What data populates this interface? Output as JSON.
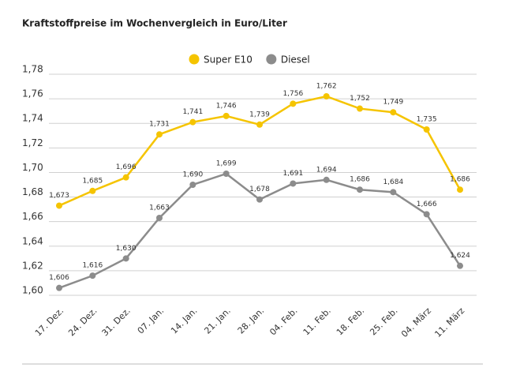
{
  "chart_data": {
    "type": "line",
    "title": "Kraftstoffpreise im Wochenvergleich in Euro/Liter",
    "categories": [
      "17. Dez.",
      "24. Dez.",
      "31. Dez.",
      "07. Jan.",
      "14. Jan.",
      "21. Jan.",
      "28. Jan.",
      "04. Feb.",
      "11. Feb.",
      "18. Feb.",
      "25. Feb.",
      "04. März",
      "11. März"
    ],
    "series": [
      {
        "name": "Super E10",
        "color": "#f5c400",
        "values": [
          1.673,
          1.685,
          1.696,
          1.731,
          1.741,
          1.746,
          1.739,
          1.756,
          1.762,
          1.752,
          1.749,
          1.735,
          1.686
        ],
        "value_labels": [
          "1,673",
          "1,685",
          "1,696",
          "1,731",
          "1,741",
          "1,746",
          "1,739",
          "1,756",
          "1,762",
          "1,752",
          "1,749",
          "1,735",
          "1,686"
        ]
      },
      {
        "name": "Diesel",
        "color": "#8c8c8c",
        "values": [
          1.606,
          1.616,
          1.63,
          1.663,
          1.69,
          1.699,
          1.678,
          1.691,
          1.694,
          1.686,
          1.684,
          1.666,
          1.624
        ],
        "value_labels": [
          "1,606",
          "1,616",
          "1,630",
          "1,663",
          "1,690",
          "1,699",
          "1,678",
          "1,691",
          "1,694",
          "1,686",
          "1,684",
          "1,666",
          "1,624"
        ]
      }
    ],
    "ylim": [
      1.6,
      1.78
    ],
    "yticks": [
      {
        "value": 1.6,
        "label": "1,60"
      },
      {
        "value": 1.62,
        "label": "1,62"
      },
      {
        "value": 1.64,
        "label": "1,64"
      },
      {
        "value": 1.66,
        "label": "1,66"
      },
      {
        "value": 1.68,
        "label": "1,68"
      },
      {
        "value": 1.7,
        "label": "1,70"
      },
      {
        "value": 1.72,
        "label": "1,72"
      },
      {
        "value": 1.74,
        "label": "1,74"
      },
      {
        "value": 1.76,
        "label": "1,76"
      },
      {
        "value": 1.78,
        "label": "1,78"
      }
    ],
    "grid": true,
    "legend": "top"
  }
}
